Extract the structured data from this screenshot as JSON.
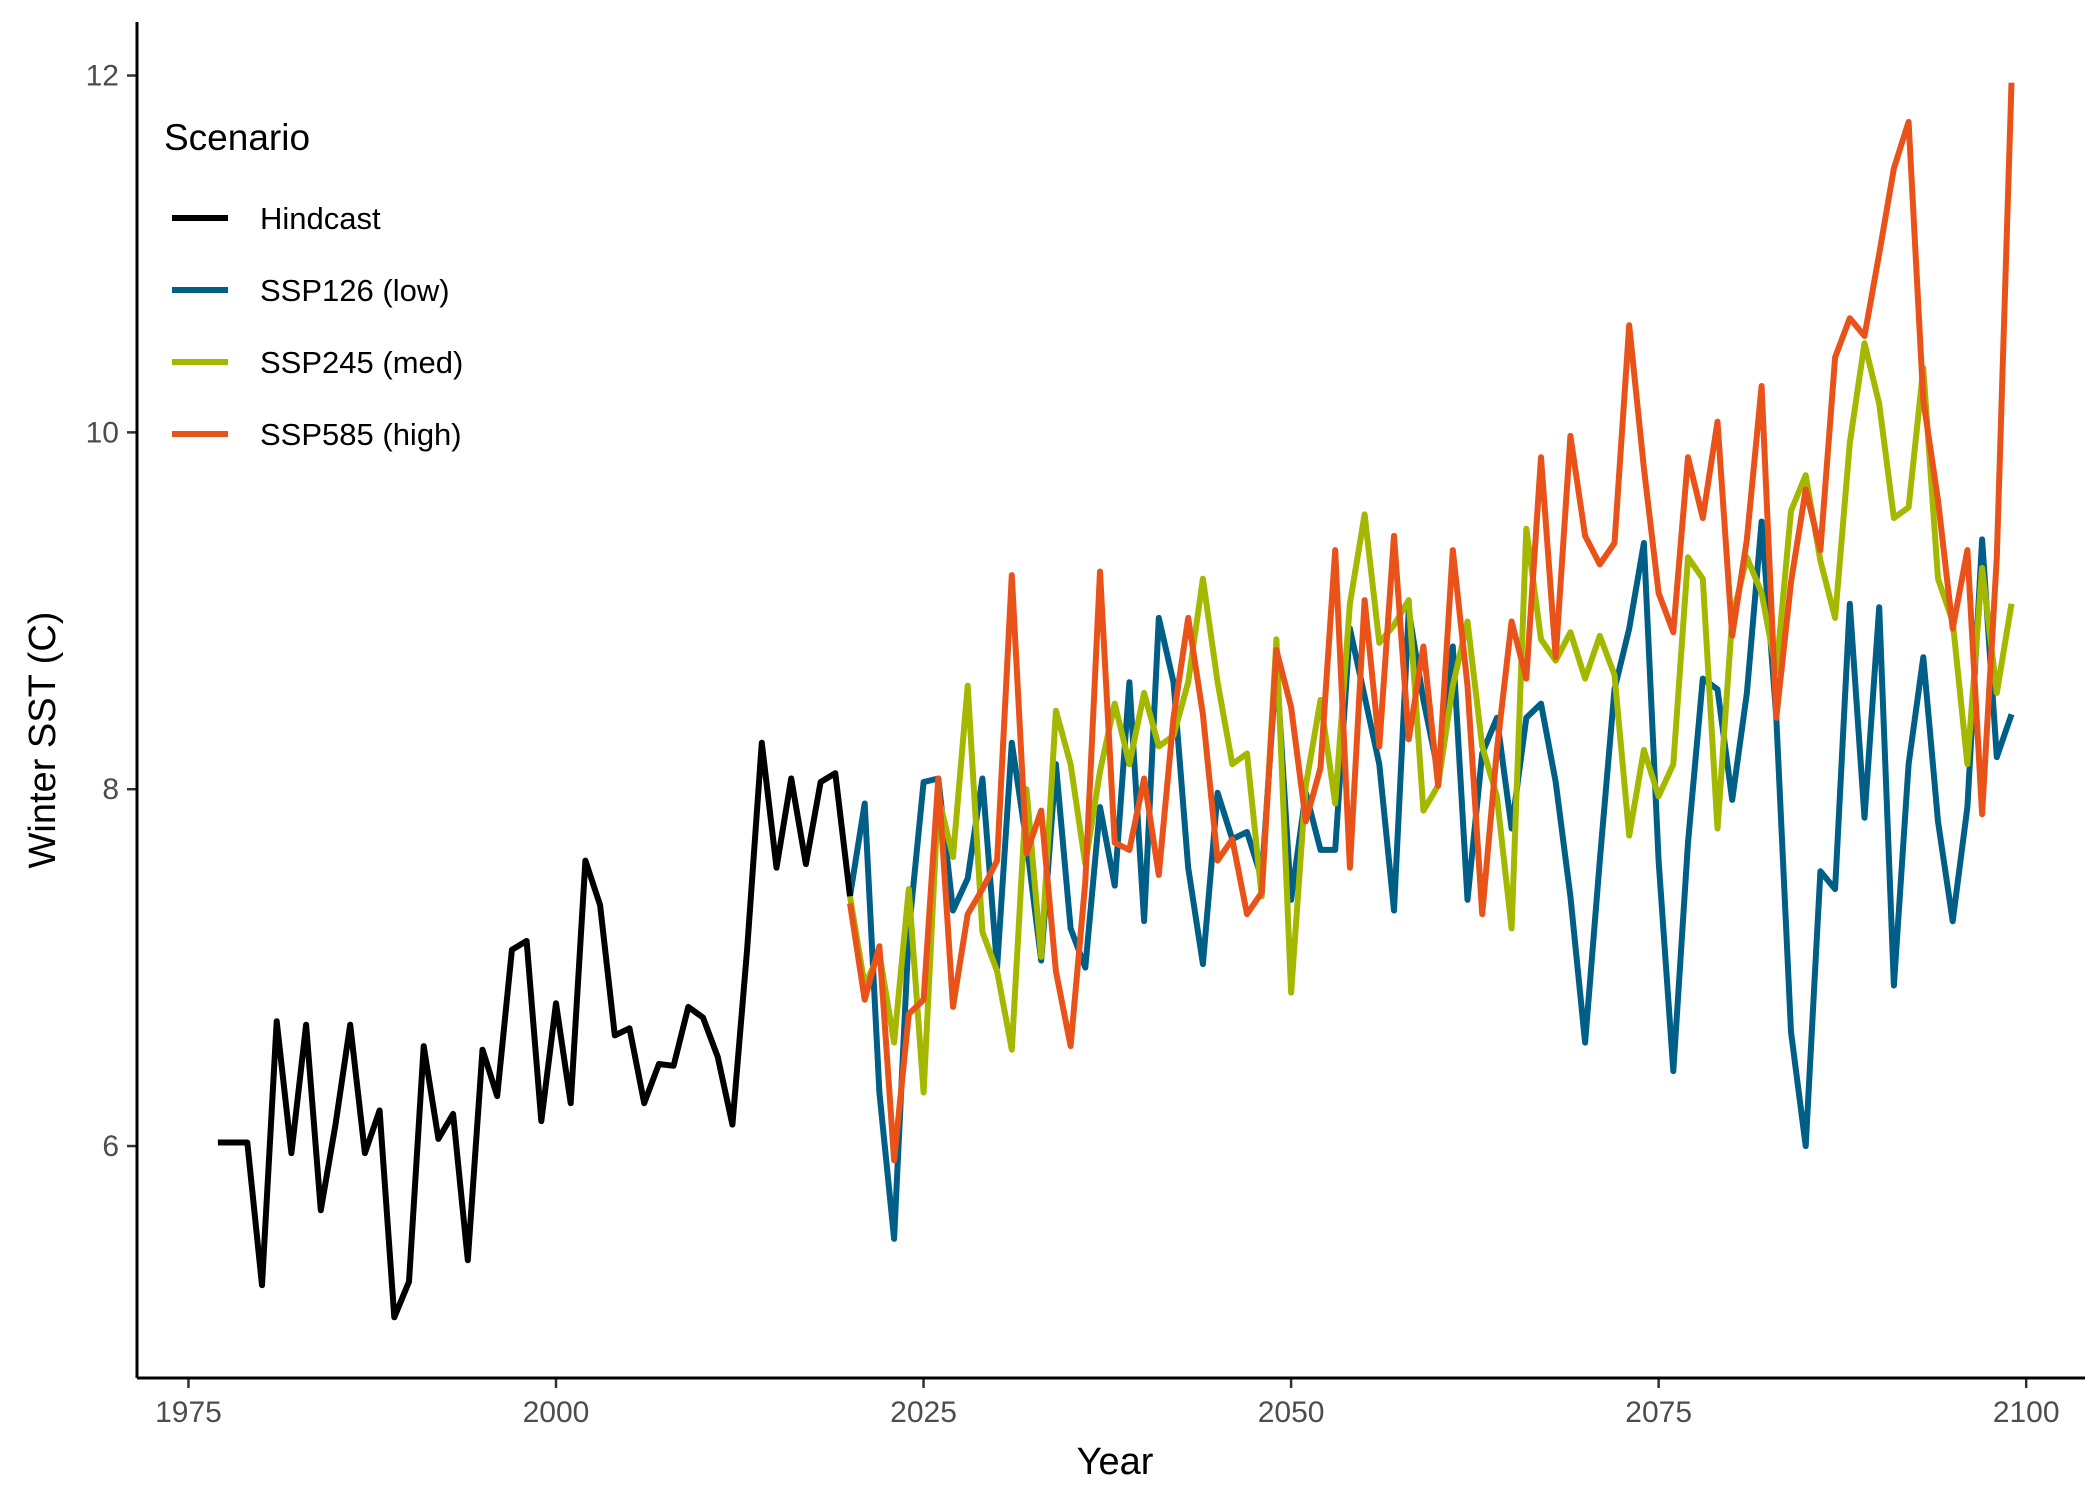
{
  "chart_data": {
    "type": "line",
    "xlabel": "Year",
    "ylabel": "Winter SST  (C)",
    "xlim": [
      1971.5,
      2104
    ],
    "ylim": [
      4.7,
      12.3
    ],
    "xticks": [
      1975,
      2000,
      2025,
      2050,
      2075,
      2100
    ],
    "yticks": [
      6,
      8,
      10,
      12
    ],
    "legend": {
      "title": "Scenario",
      "position": "top-left"
    },
    "grid": false,
    "series": [
      {
        "name": "Hindcast",
        "color": "#000000",
        "x": [
          1977,
          1978,
          1979,
          1980,
          1981,
          1982,
          1983,
          1984,
          1985,
          1986,
          1987,
          1988,
          1989,
          1990,
          1991,
          1992,
          1993,
          1994,
          1995,
          1996,
          1997,
          1998,
          1999,
          2000,
          2001,
          2002,
          2003,
          2004,
          2005,
          2006,
          2007,
          2008,
          2009,
          2010,
          2011,
          2012,
          2013,
          2014,
          2015,
          2016,
          2017,
          2018,
          2019,
          2020
        ],
        "values": [
          6.02,
          6.02,
          6.02,
          5.22,
          6.7,
          5.96,
          6.68,
          5.64,
          6.12,
          6.68,
          5.96,
          6.2,
          5.04,
          5.24,
          6.56,
          6.04,
          6.18,
          5.36,
          6.54,
          6.28,
          7.1,
          7.15,
          6.14,
          6.8,
          6.24,
          7.6,
          7.35,
          6.62,
          6.66,
          6.24,
          6.46,
          6.45,
          6.78,
          6.72,
          6.5,
          6.12,
          7.1,
          8.26,
          7.56,
          8.06,
          7.58,
          8.04,
          8.09,
          7.4
        ]
      },
      {
        "name": "SSP126 (low)",
        "color": "#005f86",
        "x": [
          2020,
          2021,
          2022,
          2023,
          2024,
          2025,
          2026,
          2027,
          2028,
          2029,
          2030,
          2031,
          2032,
          2033,
          2034,
          2035,
          2036,
          2037,
          2038,
          2039,
          2040,
          2041,
          2042,
          2043,
          2044,
          2045,
          2046,
          2047,
          2048,
          2049,
          2050,
          2051,
          2052,
          2053,
          2054,
          2055,
          2056,
          2057,
          2058,
          2059,
          2060,
          2061,
          2062,
          2063,
          2064,
          2065,
          2066,
          2067,
          2068,
          2069,
          2070,
          2071,
          2072,
          2073,
          2074,
          2075,
          2076,
          2077,
          2078,
          2079,
          2080,
          2081,
          2082,
          2083,
          2084,
          2085,
          2086,
          2087,
          2088,
          2089,
          2090,
          2091,
          2092,
          2093,
          2094,
          2095,
          2096,
          2097,
          2098,
          2099
        ],
        "values": [
          7.4,
          7.92,
          6.3,
          5.48,
          7.2,
          8.04,
          8.06,
          7.32,
          7.5,
          8.06,
          7.0,
          8.26,
          7.7,
          7.04,
          8.14,
          7.22,
          7.0,
          7.9,
          7.46,
          8.6,
          7.26,
          8.96,
          8.6,
          7.56,
          7.02,
          7.98,
          7.72,
          7.76,
          7.5,
          8.7,
          7.38,
          7.98,
          7.66,
          7.66,
          8.9,
          8.52,
          8.14,
          7.32,
          9.0,
          8.5,
          8.1,
          8.8,
          7.38,
          8.2,
          8.4,
          7.78,
          8.4,
          8.48,
          8.04,
          7.4,
          6.58,
          7.6,
          8.56,
          8.9,
          9.38,
          7.6,
          6.42,
          7.7,
          8.62,
          8.56,
          7.94,
          8.54,
          9.5,
          8.4,
          6.64,
          6.0,
          7.54,
          7.44,
          9.04,
          7.84,
          9.02,
          6.9,
          8.14,
          8.74,
          7.82,
          7.26,
          7.9,
          9.4,
          8.18,
          8.42
        ]
      },
      {
        "name": "SSP245 (med)",
        "color": "#a4b800",
        "x": [
          2020,
          2021,
          2022,
          2023,
          2024,
          2025,
          2026,
          2027,
          2028,
          2029,
          2030,
          2031,
          2032,
          2033,
          2034,
          2035,
          2036,
          2037,
          2038,
          2039,
          2040,
          2041,
          2042,
          2043,
          2044,
          2045,
          2046,
          2047,
          2048,
          2049,
          2050,
          2051,
          2052,
          2053,
          2054,
          2055,
          2056,
          2057,
          2058,
          2059,
          2060,
          2061,
          2062,
          2063,
          2064,
          2065,
          2066,
          2067,
          2068,
          2069,
          2070,
          2071,
          2072,
          2073,
          2074,
          2075,
          2076,
          2077,
          2078,
          2079,
          2080,
          2081,
          2082,
          2083,
          2084,
          2085,
          2086,
          2087,
          2088,
          2089,
          2090,
          2091,
          2092,
          2093,
          2094,
          2095,
          2096,
          2097,
          2098,
          2099
        ],
        "values": [
          7.4,
          6.9,
          7.08,
          6.58,
          7.44,
          6.3,
          7.96,
          7.62,
          8.58,
          7.2,
          6.98,
          6.54,
          8.0,
          7.06,
          8.44,
          8.14,
          7.58,
          8.1,
          8.48,
          8.14,
          8.54,
          8.24,
          8.3,
          8.6,
          9.18,
          8.6,
          8.14,
          8.2,
          7.4,
          8.84,
          6.86,
          8.02,
          8.5,
          7.92,
          9.04,
          9.54,
          8.82,
          8.92,
          9.06,
          7.88,
          8.02,
          8.58,
          8.94,
          8.24,
          7.96,
          7.22,
          9.46,
          8.84,
          8.72,
          8.88,
          8.62,
          8.86,
          8.64,
          7.74,
          8.22,
          7.96,
          8.14,
          9.3,
          9.18,
          7.78,
          8.96,
          9.3,
          9.1,
          8.66,
          9.56,
          9.76,
          9.28,
          8.96,
          9.94,
          10.5,
          10.16,
          9.52,
          9.58,
          10.36,
          9.18,
          8.94,
          8.14,
          9.24,
          8.54,
          9.04
        ]
      },
      {
        "name": "SSP585 (high)",
        "color": "#e9531a",
        "x": [
          2020,
          2021,
          2022,
          2023,
          2024,
          2025,
          2026,
          2027,
          2028,
          2029,
          2030,
          2031,
          2032,
          2033,
          2034,
          2035,
          2036,
          2037,
          2038,
          2039,
          2040,
          2041,
          2042,
          2043,
          2044,
          2045,
          2046,
          2047,
          2048,
          2049,
          2050,
          2051,
          2052,
          2053,
          2054,
          2055,
          2056,
          2057,
          2058,
          2059,
          2060,
          2061,
          2062,
          2063,
          2064,
          2065,
          2066,
          2067,
          2068,
          2069,
          2070,
          2071,
          2072,
          2073,
          2074,
          2075,
          2076,
          2077,
          2078,
          2079,
          2080,
          2081,
          2082,
          2083,
          2084,
          2085,
          2086,
          2087,
          2088,
          2089,
          2090,
          2091,
          2092,
          2093,
          2094,
          2095,
          2096,
          2097,
          2098,
          2099
        ],
        "values": [
          7.36,
          6.82,
          7.12,
          5.92,
          6.74,
          6.82,
          8.06,
          6.78,
          7.3,
          7.44,
          7.6,
          9.2,
          7.64,
          7.88,
          6.98,
          6.56,
          7.48,
          9.22,
          7.7,
          7.66,
          8.06,
          7.52,
          8.4,
          8.96,
          8.42,
          7.6,
          7.72,
          7.3,
          7.42,
          8.78,
          8.46,
          7.82,
          8.12,
          9.34,
          7.56,
          9.06,
          8.24,
          9.42,
          8.28,
          8.8,
          8.02,
          9.34,
          8.58,
          7.3,
          8.22,
          8.94,
          8.62,
          9.86,
          8.74,
          9.98,
          9.42,
          9.26,
          9.38,
          10.6,
          9.8,
          9.1,
          8.88,
          9.86,
          9.52,
          10.06,
          8.86,
          9.4,
          10.26,
          8.4,
          9.16,
          9.68,
          9.34,
          10.42,
          10.64,
          10.54,
          11.0,
          11.48,
          11.74,
          10.18,
          9.62,
          8.9,
          9.34,
          7.86,
          9.3,
          11.96
        ]
      }
    ]
  }
}
